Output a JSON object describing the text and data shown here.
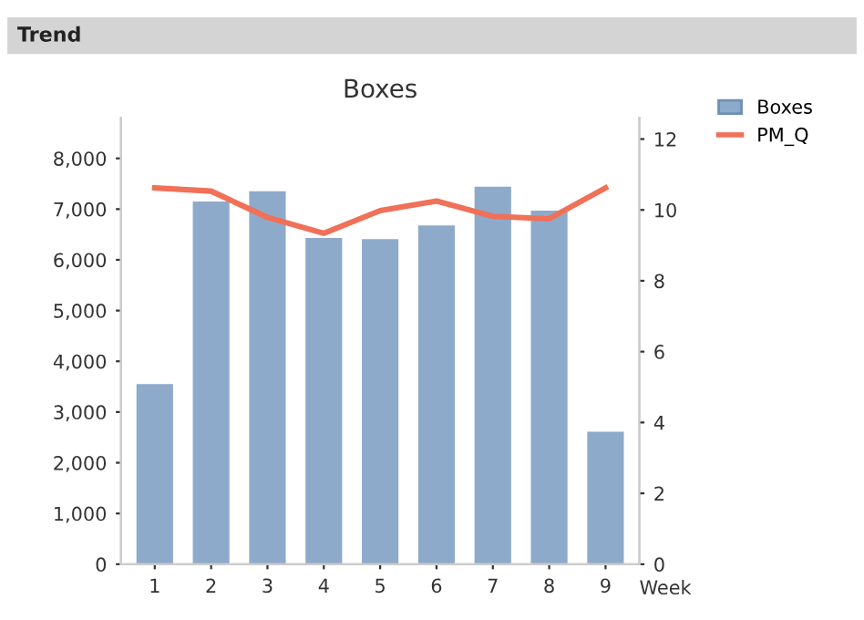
{
  "chart_data": {
    "type": "bar",
    "title": "Boxes",
    "xlabel": "Week",
    "annotations": [
      "Trend"
    ],
    "categories": [
      "1",
      "2",
      "3",
      "4",
      "5",
      "6",
      "7",
      "8",
      "9"
    ],
    "series": [
      {
        "name": "Boxes",
        "color": "#8eaacb",
        "values": [
          3550,
          7150,
          7350,
          6430,
          6410,
          6680,
          7440,
          6970,
          2610
        ]
      },
      {
        "name": "PM_Q",
        "type": "line",
        "axis": "y2",
        "color": "#f07058",
        "values": [
          10.62,
          10.53,
          9.79,
          9.34,
          9.98,
          10.25,
          9.82,
          9.75,
          10.62
        ]
      }
    ],
    "ylim": [
      0,
      8800
    ],
    "yticks": [
      0,
      {
        "value": 1000,
        "label": "1,000"
      },
      {
        "value": 2000,
        "label": "2,000"
      },
      {
        "value": 3000,
        "label": "3,000"
      },
      {
        "value": 4000,
        "label": "4,000"
      },
      {
        "value": 5000,
        "label": "5,000"
      },
      {
        "value": 6000,
        "label": "6,000"
      },
      {
        "value": 7000,
        "label": "7,000"
      },
      {
        "value": 8000,
        "label": "8,000"
      }
    ],
    "y2lim": [
      0,
      12.6
    ],
    "y2ticks": [
      0,
      2,
      4,
      6,
      8,
      10,
      12
    ],
    "legend": "top right",
    "grid": false,
    "marker": "none",
    "line_style": "solid"
  }
}
